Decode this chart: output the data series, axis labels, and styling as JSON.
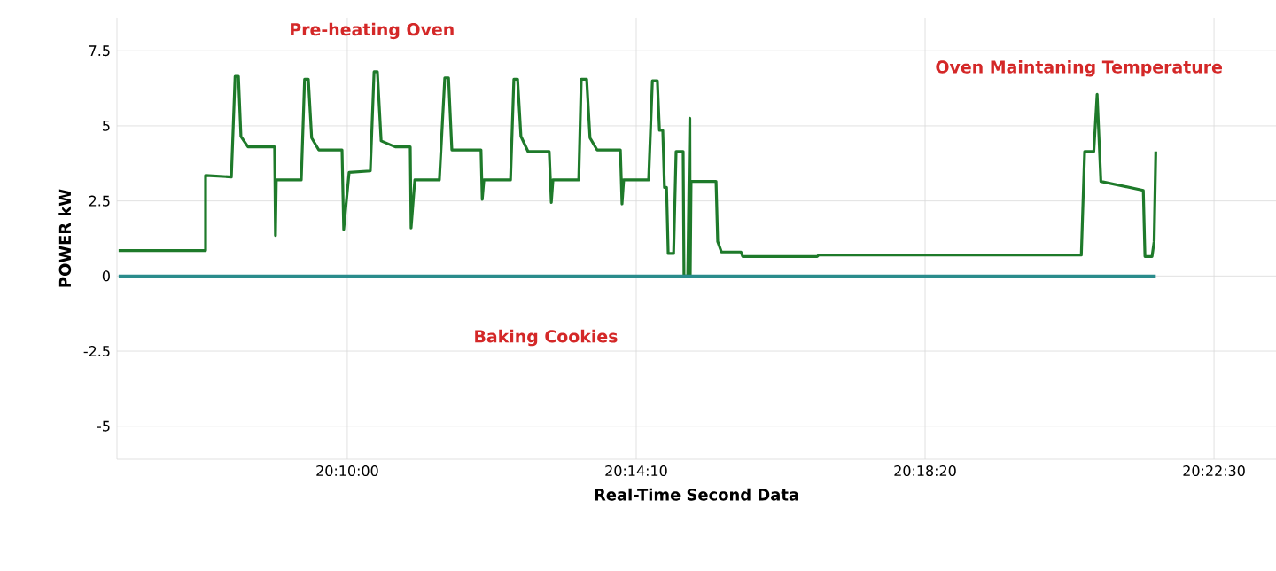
{
  "chart_data": {
    "type": "line",
    "xlabel": "Real-Time Second Data",
    "ylabel": "POWER kW",
    "xlim": [
      20.1113,
      20.3899
    ],
    "ylim": [
      -6.1,
      8.6
    ],
    "xticks": [
      {
        "value": 20.166667,
        "label": "20:10:00"
      },
      {
        "value": 20.236111,
        "label": "20:14:10"
      },
      {
        "value": 20.305556,
        "label": "20:18:20"
      },
      {
        "value": 20.375,
        "label": "20:22:30"
      }
    ],
    "yticks": [
      -5,
      -2.5,
      0,
      2.5,
      5,
      7.5
    ],
    "grid": true,
    "annotations": [
      "Pre-heating Oven",
      "Oven Maintaning Temperature",
      "Baking Cookies"
    ],
    "series": [
      {
        "color": "#1e7a2a",
        "x": [
          20.1117,
          20.1326,
          20.1326,
          20.1388,
          20.1397,
          20.1405,
          20.1411,
          20.1428,
          20.1492,
          20.1494,
          20.1496,
          20.1556,
          20.1564,
          20.1573,
          20.1581,
          20.1598,
          20.1654,
          20.1658,
          20.1671,
          20.1722,
          20.1731,
          20.1739,
          20.1748,
          20.1782,
          20.1818,
          20.182,
          20.1829,
          20.1888,
          20.1901,
          20.191,
          20.1918,
          20.1988,
          20.1991,
          20.1995,
          20.2059,
          20.2067,
          20.2076,
          20.2084,
          20.2101,
          20.2152,
          20.2157,
          20.2161,
          20.2223,
          20.2229,
          20.2242,
          20.225,
          20.2267,
          20.2323,
          20.2327,
          20.2331,
          20.2391,
          20.24,
          20.2412,
          20.2417,
          20.2425,
          20.2429,
          20.2434,
          20.2438,
          20.2451,
          20.2457,
          20.2474,
          20.2476,
          20.2485,
          20.249,
          20.2491,
          20.2493,
          20.2553,
          20.2557,
          20.2566,
          20.2613,
          20.2617,
          20.2796,
          20.28,
          20.3431,
          20.3439,
          20.3461,
          20.3469,
          20.3478,
          20.358,
          20.3584,
          20.3601,
          20.3606,
          20.361
        ],
        "values": [
          0.85,
          0.85,
          3.35,
          3.3,
          6.65,
          6.65,
          4.65,
          4.3,
          4.3,
          1.35,
          3.2,
          3.2,
          6.55,
          6.55,
          4.6,
          4.2,
          4.2,
          1.55,
          3.45,
          3.5,
          6.8,
          6.8,
          4.5,
          4.3,
          4.3,
          1.6,
          3.2,
          3.2,
          6.6,
          6.6,
          4.2,
          4.2,
          2.55,
          3.2,
          3.2,
          6.55,
          6.55,
          4.65,
          4.15,
          4.15,
          2.45,
          3.2,
          3.2,
          6.55,
          6.55,
          4.6,
          4.2,
          4.2,
          2.4,
          3.2,
          3.2,
          6.5,
          6.5,
          4.85,
          4.85,
          2.95,
          2.95,
          0.75,
          0.75,
          4.15,
          4.15,
          0,
          0,
          5.25,
          0,
          3.15,
          3.15,
          1.15,
          0.8,
          0.8,
          0.65,
          0.65,
          0.7,
          0.7,
          4.15,
          4.15,
          6.05,
          3.15,
          2.85,
          0.65,
          0.65,
          1.15,
          4.15
        ]
      },
      {
        "color": "#2a8c8c",
        "x": [
          20.1117,
          20.361
        ],
        "values": [
          0,
          0
        ]
      }
    ]
  }
}
